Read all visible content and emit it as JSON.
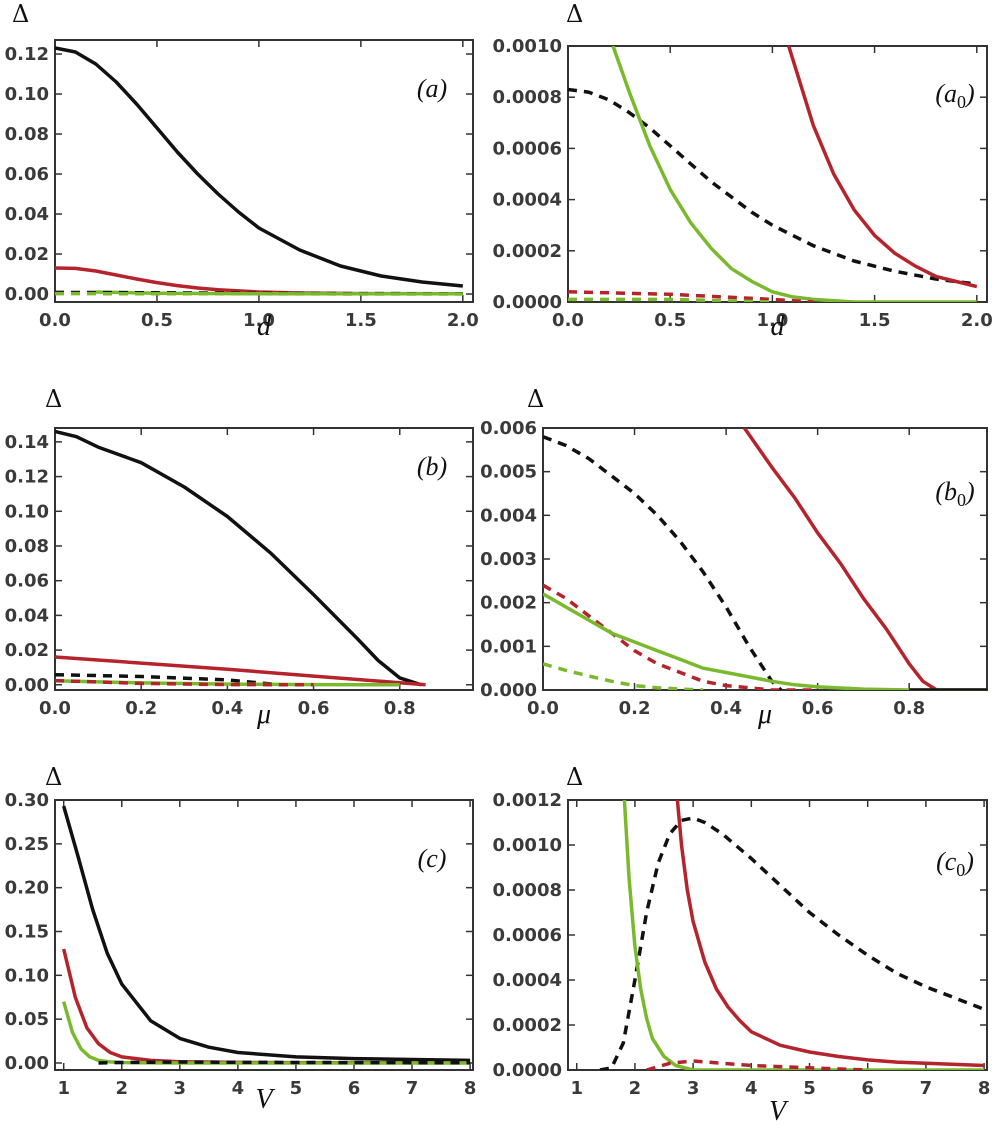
{
  "colors": {
    "black": "#111111",
    "red": "#b5242c",
    "green": "#7ab92e"
  },
  "chart_data": [
    {
      "id": "a",
      "type": "line",
      "label": "(a)",
      "xlabel": "d",
      "ylabel": "Δ",
      "xlim": [
        0,
        2.05
      ],
      "ylim": [
        -0.004,
        0.127
      ],
      "xticks": [
        0,
        0.5,
        1,
        1.5,
        2
      ],
      "xtick_labels": [
        "0.0",
        "0.5",
        "1.0",
        "1.5",
        "2.0"
      ],
      "yticks": [
        0,
        0.02,
        0.04,
        0.06,
        0.08,
        0.1,
        0.12
      ],
      "ytick_labels": [
        "0.00",
        "0.02",
        "0.04",
        "0.06",
        "0.08",
        "0.10",
        "0.12"
      ],
      "series": [
        {
          "color": "black",
          "dash": false,
          "x": [
            0,
            0.1,
            0.2,
            0.3,
            0.4,
            0.5,
            0.6,
            0.7,
            0.8,
            0.9,
            1.0,
            1.2,
            1.4,
            1.6,
            1.8,
            2.0
          ],
          "y": [
            0.123,
            0.121,
            0.115,
            0.106,
            0.095,
            0.083,
            0.071,
            0.06,
            0.05,
            0.041,
            0.033,
            0.022,
            0.014,
            0.009,
            0.006,
            0.004
          ]
        },
        {
          "color": "red",
          "dash": false,
          "x": [
            0,
            0.1,
            0.2,
            0.3,
            0.4,
            0.5,
            0.6,
            0.7,
            0.8,
            1.0,
            1.2,
            1.5,
            2.0
          ],
          "y": [
            0.013,
            0.0128,
            0.0115,
            0.0095,
            0.0075,
            0.0057,
            0.0042,
            0.003,
            0.0021,
            0.001,
            0.0005,
            0.0002,
            0.0001
          ]
        },
        {
          "color": "green",
          "dash": false,
          "x": [
            0.2,
            0.5,
            1.0,
            1.5,
            2.0
          ],
          "y": [
            0.001,
            0.0004,
            0.0001,
            0.0001,
            0.0001
          ]
        },
        {
          "color": "black",
          "dash": true,
          "x": [
            0,
            0.5,
            1.0,
            1.5,
            2.0
          ],
          "y": [
            0.0008,
            0.0006,
            0.0003,
            0.0002,
            0.0001
          ]
        },
        {
          "color": "green",
          "dash": true,
          "x": [
            0,
            0.5,
            1.0,
            1.5,
            2.0
          ],
          "y": [
            0.0002,
            0.0001,
            0.0001,
            0.0,
            0.0
          ]
        }
      ]
    },
    {
      "id": "a0",
      "type": "line",
      "label": "(a0)",
      "xlabel": "d",
      "ylabel": "Δ",
      "xlim": [
        0,
        2.05
      ],
      "ylim": [
        0,
        0.001
      ],
      "xticks": [
        0,
        0.5,
        1,
        1.5,
        2
      ],
      "xtick_labels": [
        "0.0",
        "0.5",
        "1.0",
        "1.5",
        "2.0"
      ],
      "yticks": [
        0,
        0.0002,
        0.0004,
        0.0006,
        0.0008,
        0.001
      ],
      "ytick_labels": [
        "0.0000",
        "0.0002",
        "0.0004",
        "0.0006",
        "0.0008",
        "0.0010"
      ],
      "series": [
        {
          "color": "black",
          "dash": true,
          "x": [
            0,
            0.1,
            0.2,
            0.3,
            0.4,
            0.5,
            0.6,
            0.7,
            0.8,
            0.9,
            1.0,
            1.2,
            1.4,
            1.6,
            1.8,
            2.0
          ],
          "y": [
            0.00083,
            0.00082,
            0.00079,
            0.00074,
            0.00068,
            0.00061,
            0.00054,
            0.00047,
            0.00041,
            0.00035,
            0.0003,
            0.00022,
            0.00016,
            0.00012,
            9e-05,
            7e-05
          ]
        },
        {
          "color": "green",
          "dash": false,
          "x": [
            0.22,
            0.3,
            0.4,
            0.5,
            0.6,
            0.7,
            0.8,
            0.9,
            1.0,
            1.1,
            1.2,
            1.4,
            1.6,
            2.0
          ],
          "y": [
            0.001,
            0.00082,
            0.00061,
            0.00044,
            0.00031,
            0.00021,
            0.00013,
            8e-05,
            4e-05,
            2e-05,
            1e-05,
            0.0,
            0.0,
            0.0
          ]
        },
        {
          "color": "red",
          "dash": false,
          "x": [
            1.08,
            1.2,
            1.3,
            1.4,
            1.5,
            1.6,
            1.7,
            1.8,
            1.9,
            2.0
          ],
          "y": [
            0.001,
            0.00069,
            0.0005,
            0.00036,
            0.00026,
            0.00019,
            0.00014,
            0.0001,
            8e-05,
            6e-05
          ]
        },
        {
          "color": "red",
          "dash": true,
          "x": [
            0,
            0.5,
            1.0,
            1.2
          ],
          "y": [
            4e-05,
            3e-05,
            1e-05,
            0.0
          ]
        },
        {
          "color": "green",
          "dash": true,
          "x": [
            0,
            0.5,
            1.0
          ],
          "y": [
            1e-05,
            1e-05,
            0.0
          ]
        }
      ]
    },
    {
      "id": "b",
      "type": "line",
      "label": "(b)",
      "xlabel": "μ",
      "ylabel": "Δ",
      "xlim": [
        0,
        0.97
      ],
      "ylim": [
        -0.003,
        0.148
      ],
      "xticks": [
        0,
        0.2,
        0.4,
        0.6,
        0.8
      ],
      "xtick_labels": [
        "0.0",
        "0.2",
        "0.4",
        "0.6",
        "0.8"
      ],
      "yticks": [
        0,
        0.02,
        0.04,
        0.06,
        0.08,
        0.1,
        0.12,
        0.14
      ],
      "ytick_labels": [
        "0.00",
        "0.02",
        "0.04",
        "0.06",
        "0.08",
        "0.10",
        "0.12",
        "0.14"
      ],
      "series": [
        {
          "color": "black",
          "dash": false,
          "x": [
            0,
            0.05,
            0.1,
            0.2,
            0.3,
            0.4,
            0.5,
            0.6,
            0.7,
            0.75,
            0.8,
            0.85
          ],
          "y": [
            0.146,
            0.143,
            0.137,
            0.128,
            0.114,
            0.097,
            0.076,
            0.052,
            0.027,
            0.014,
            0.004,
            0.0
          ]
        },
        {
          "color": "red",
          "dash": false,
          "x": [
            0,
            0.2,
            0.4,
            0.6,
            0.8,
            0.86
          ],
          "y": [
            0.016,
            0.0125,
            0.009,
            0.005,
            0.0012,
            0.0
          ]
        },
        {
          "color": "black",
          "dash": true,
          "x": [
            0,
            0.2,
            0.4,
            0.5,
            0.52
          ],
          "y": [
            0.0058,
            0.0048,
            0.0028,
            0.0005,
            0.0
          ]
        },
        {
          "color": "green",
          "dash": false,
          "x": [
            0,
            0.2,
            0.4,
            0.6,
            0.8
          ],
          "y": [
            0.0023,
            0.0011,
            0.0004,
            0.0001,
            0.0
          ]
        },
        {
          "color": "red",
          "dash": true,
          "x": [
            0,
            0.2,
            0.4,
            0.6
          ],
          "y": [
            0.0024,
            0.0008,
            0.0001,
            0.0
          ]
        }
      ]
    },
    {
      "id": "b0",
      "type": "line",
      "label": "(b0)",
      "xlabel": "μ",
      "ylabel": "Δ",
      "xlim": [
        0,
        0.97
      ],
      "ylim": [
        0,
        0.006
      ],
      "xticks": [
        0,
        0.2,
        0.4,
        0.6,
        0.8
      ],
      "xtick_labels": [
        "0.0",
        "0.2",
        "0.4",
        "0.6",
        "0.8"
      ],
      "yticks": [
        0,
        0.001,
        0.002,
        0.003,
        0.004,
        0.005,
        0.006
      ],
      "ytick_labels": [
        "0.000",
        "0.001",
        "0.002",
        "0.003",
        "0.004",
        "0.005",
        "0.006"
      ],
      "series": [
        {
          "color": "black",
          "dash": true,
          "x": [
            0,
            0.05,
            0.1,
            0.15,
            0.2,
            0.25,
            0.3,
            0.35,
            0.4,
            0.45,
            0.5,
            0.52
          ],
          "y": [
            0.0058,
            0.0056,
            0.0053,
            0.0049,
            0.0045,
            0.004,
            0.0034,
            0.0027,
            0.0019,
            0.001,
            0.0002,
            0.0
          ]
        },
        {
          "color": "red",
          "dash": false,
          "x": [
            0.44,
            0.5,
            0.55,
            0.6,
            0.65,
            0.7,
            0.75,
            0.8,
            0.83,
            0.86
          ],
          "y": [
            0.006,
            0.0051,
            0.0044,
            0.0036,
            0.0029,
            0.0021,
            0.0014,
            0.0006,
            0.0002,
            0.0
          ]
        },
        {
          "color": "red",
          "dash": true,
          "x": [
            0,
            0.05,
            0.1,
            0.15,
            0.2,
            0.25,
            0.3,
            0.35,
            0.4,
            0.5,
            0.6
          ],
          "y": [
            0.0024,
            0.0021,
            0.0017,
            0.0013,
            0.0009,
            0.0006,
            0.0004,
            0.0002,
            0.0001,
            0.0,
            0.0
          ]
        },
        {
          "color": "green",
          "dash": false,
          "x": [
            0,
            0.05,
            0.1,
            0.15,
            0.2,
            0.25,
            0.3,
            0.35,
            0.4,
            0.45,
            0.5,
            0.55,
            0.6,
            0.7,
            0.8,
            0.97
          ],
          "y": [
            0.0022,
            0.0019,
            0.0016,
            0.0013,
            0.0011,
            0.0009,
            0.0007,
            0.0005,
            0.0004,
            0.0003,
            0.0002,
            0.00012,
            7e-05,
            2e-05,
            0.0,
            0.0
          ]
        },
        {
          "color": "green",
          "dash": true,
          "x": [
            0,
            0.05,
            0.1,
            0.15,
            0.2,
            0.25,
            0.3,
            0.35
          ],
          "y": [
            0.0006,
            0.00045,
            0.00032,
            0.0002,
            0.0001,
            5e-05,
            2e-05,
            0.0
          ]
        },
        {
          "color": "black",
          "dash": false,
          "x": [
            0.8,
            0.9,
            0.97
          ],
          "y": [
            0.0,
            0.0,
            0.0
          ]
        }
      ]
    },
    {
      "id": "c",
      "type": "line",
      "label": "(c)",
      "xlabel": "V",
      "ylabel": "Δ",
      "xlim": [
        0.85,
        8.05
      ],
      "ylim": [
        -0.008,
        0.3
      ],
      "xticks": [
        1,
        2,
        3,
        4,
        5,
        6,
        7,
        8
      ],
      "xtick_labels": [
        "1",
        "2",
        "3",
        "4",
        "5",
        "6",
        "7",
        "8"
      ],
      "yticks": [
        0,
        0.05,
        0.1,
        0.15,
        0.2,
        0.25,
        0.3
      ],
      "ytick_labels": [
        "0.00",
        "0.05",
        "0.10",
        "0.15",
        "0.20",
        "0.25",
        "0.30"
      ],
      "series": [
        {
          "color": "black",
          "dash": false,
          "x": [
            1,
            1.25,
            1.5,
            1.75,
            2,
            2.5,
            3,
            3.5,
            4,
            5,
            6,
            7,
            8
          ],
          "y": [
            0.293,
            0.235,
            0.175,
            0.125,
            0.09,
            0.048,
            0.028,
            0.018,
            0.012,
            0.007,
            0.005,
            0.004,
            0.003
          ]
        },
        {
          "color": "red",
          "dash": false,
          "x": [
            1,
            1.2,
            1.4,
            1.6,
            1.8,
            2.0,
            2.5,
            3.0,
            4,
            5,
            8
          ],
          "y": [
            0.13,
            0.075,
            0.04,
            0.022,
            0.012,
            0.007,
            0.003,
            0.0015,
            0.0007,
            0.0004,
            0.0002
          ]
        },
        {
          "color": "green",
          "dash": false,
          "x": [
            1,
            1.15,
            1.3,
            1.45,
            1.6,
            1.8,
            2.0,
            2.5,
            3,
            4,
            8
          ],
          "y": [
            0.07,
            0.035,
            0.016,
            0.007,
            0.003,
            0.0012,
            0.0005,
            0.0001,
            0.0,
            0.0,
            0.0
          ]
        },
        {
          "color": "black",
          "dash": true,
          "x": [
            1.6,
            2,
            3,
            4,
            5,
            6,
            7,
            8
          ],
          "y": [
            0.0,
            0.0006,
            0.0011,
            0.0008,
            0.0006,
            0.0004,
            0.0003,
            0.0003
          ]
        }
      ]
    },
    {
      "id": "c0",
      "type": "line",
      "label": "(c0)",
      "xlabel": "V",
      "ylabel": "Δ",
      "xlim": [
        0.85,
        8.05
      ],
      "ylim": [
        0,
        0.0012
      ],
      "xticks": [
        1,
        2,
        3,
        4,
        5,
        6,
        7,
        8
      ],
      "xtick_labels": [
        "1",
        "2",
        "3",
        "4",
        "5",
        "6",
        "7",
        "8"
      ],
      "yticks": [
        0,
        0.0002,
        0.0004,
        0.0006,
        0.0008,
        0.001,
        0.0012
      ],
      "ytick_labels": [
        "0.0000",
        "0.0002",
        "0.0004",
        "0.0006",
        "0.0008",
        "0.0010",
        "0.0012"
      ],
      "series": [
        {
          "color": "black",
          "dash": true,
          "x": [
            1.4,
            1.6,
            1.8,
            2.0,
            2.2,
            2.4,
            2.6,
            2.8,
            3.0,
            3.2,
            3.5,
            4.0,
            4.5,
            5.0,
            5.5,
            6.0,
            6.5,
            7.0,
            7.5,
            8.0
          ],
          "y": [
            0.0,
            1e-05,
            0.00012,
            0.0004,
            0.0007,
            0.00092,
            0.00105,
            0.00111,
            0.00112,
            0.0011,
            0.00105,
            0.00094,
            0.00082,
            0.0007,
            0.0006,
            0.00051,
            0.00043,
            0.00037,
            0.00032,
            0.00027
          ]
        },
        {
          "color": "green",
          "dash": false,
          "x": [
            1.82,
            1.9,
            2.0,
            2.1,
            2.2,
            2.3,
            2.5,
            2.7,
            3.0,
            4,
            8
          ],
          "y": [
            0.0012,
            0.00085,
            0.00055,
            0.00036,
            0.00023,
            0.00014,
            6e-05,
            2e-05,
            0.0,
            0.0,
            0.0
          ]
        },
        {
          "color": "red",
          "dash": false,
          "x": [
            2.73,
            2.8,
            2.9,
            3.0,
            3.2,
            3.4,
            3.6,
            3.8,
            4.0,
            4.5,
            5.0,
            5.5,
            6.0,
            6.5,
            7.0,
            7.5,
            8.0
          ],
          "y": [
            0.0012,
            0.001,
            0.0008,
            0.00066,
            0.00048,
            0.00036,
            0.00028,
            0.00022,
            0.00017,
            0.00011,
            8e-05,
            6e-05,
            4.5e-05,
            3.5e-05,
            3e-05,
            2.5e-05,
            2e-05
          ]
        },
        {
          "color": "red",
          "dash": true,
          "x": [
            2.2,
            2.6,
            3.0,
            3.5,
            4,
            5,
            6
          ],
          "y": [
            0.0,
            3e-05,
            4e-05,
            3e-05,
            2e-05,
            1e-05,
            0.0
          ]
        }
      ]
    }
  ]
}
